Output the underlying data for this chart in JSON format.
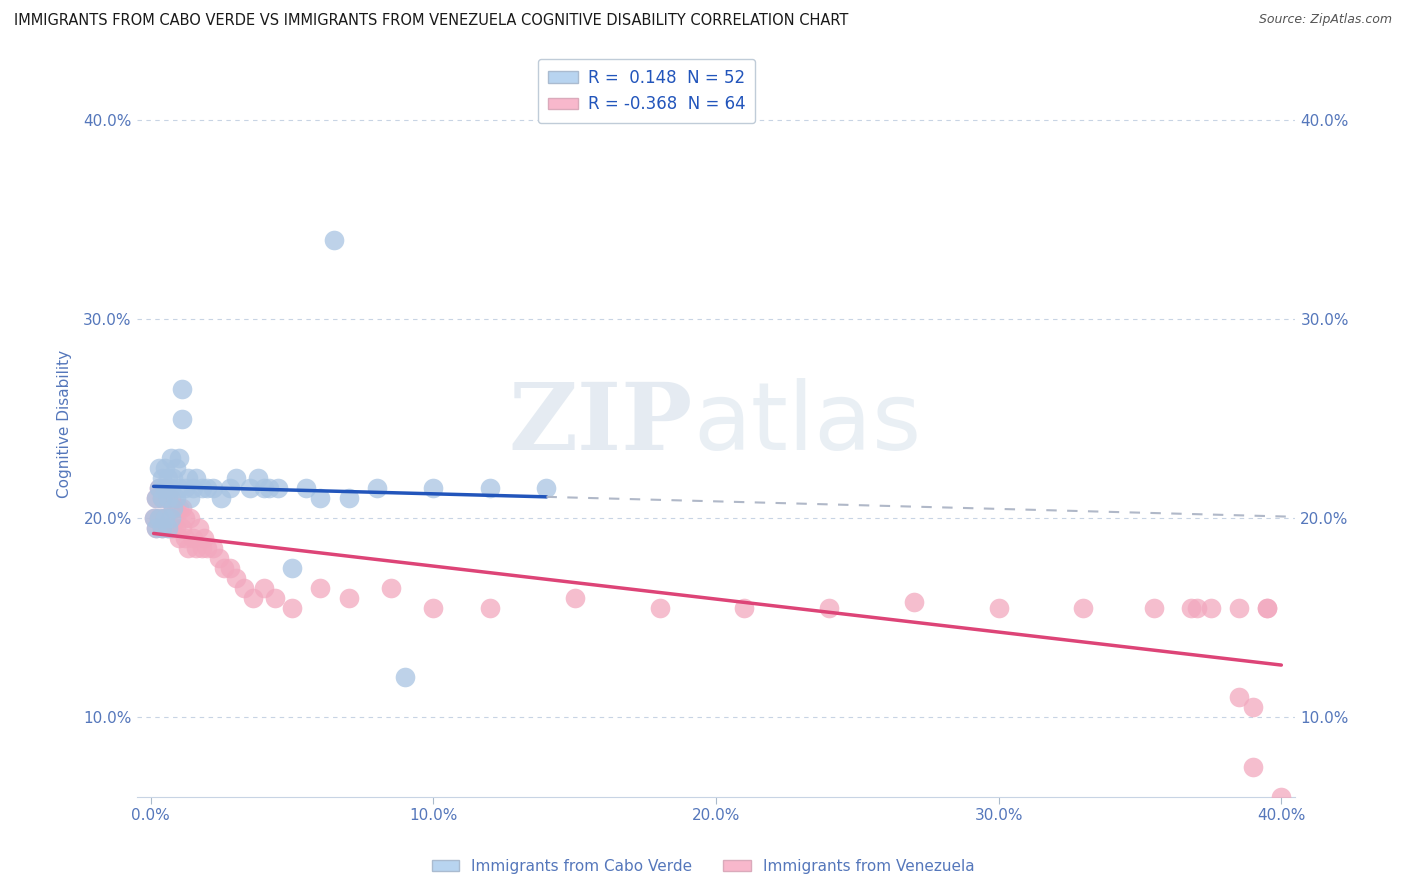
{
  "title": "IMMIGRANTS FROM CABO VERDE VS IMMIGRANTS FROM VENEZUELA COGNITIVE DISABILITY CORRELATION CHART",
  "source": "Source: ZipAtlas.com",
  "xlabel_left": "Immigrants from Cabo Verde",
  "xlabel_right": "Immigrants from Venezuela",
  "ylabel": "Cognitive Disability",
  "xlim": [
    -0.005,
    0.405
  ],
  "ylim": [
    0.06,
    0.435
  ],
  "xticks": [
    0.0,
    0.1,
    0.2,
    0.3,
    0.4
  ],
  "yticks": [
    0.1,
    0.2,
    0.3,
    0.4
  ],
  "r_cabo": 0.148,
  "n_cabo": 52,
  "r_venez": -0.368,
  "n_venez": 64,
  "watermark_zip": "ZIP",
  "watermark_atlas": "atlas",
  "cabo_color": "#a8c4e2",
  "venez_color": "#f2a8be",
  "cabo_line_color": "#2255bb",
  "venez_line_color": "#dd4477",
  "dash_color": "#b0b8c8",
  "cabo_legend_color": "#b8d4f0",
  "venez_legend_color": "#f8b8cc",
  "background_color": "#ffffff",
  "grid_color": "#c8d4e4",
  "tick_color": "#5577bb",
  "cabo_x": [
    0.001,
    0.002,
    0.002,
    0.003,
    0.003,
    0.003,
    0.004,
    0.004,
    0.004,
    0.005,
    0.005,
    0.005,
    0.006,
    0.006,
    0.006,
    0.007,
    0.007,
    0.007,
    0.008,
    0.008,
    0.009,
    0.009,
    0.01,
    0.01,
    0.011,
    0.011,
    0.012,
    0.013,
    0.014,
    0.015,
    0.016,
    0.018,
    0.02,
    0.022,
    0.025,
    0.028,
    0.03,
    0.035,
    0.038,
    0.04,
    0.042,
    0.045,
    0.05,
    0.055,
    0.06,
    0.065,
    0.07,
    0.08,
    0.09,
    0.1,
    0.12,
    0.14
  ],
  "cabo_y": [
    0.2,
    0.195,
    0.21,
    0.2,
    0.215,
    0.225,
    0.195,
    0.21,
    0.22,
    0.2,
    0.215,
    0.225,
    0.195,
    0.21,
    0.22,
    0.2,
    0.215,
    0.23,
    0.205,
    0.22,
    0.21,
    0.225,
    0.215,
    0.23,
    0.25,
    0.265,
    0.215,
    0.22,
    0.21,
    0.215,
    0.22,
    0.215,
    0.215,
    0.215,
    0.21,
    0.215,
    0.22,
    0.215,
    0.22,
    0.215,
    0.215,
    0.215,
    0.175,
    0.215,
    0.21,
    0.34,
    0.21,
    0.215,
    0.12,
    0.215,
    0.215,
    0.215
  ],
  "venez_x": [
    0.001,
    0.002,
    0.002,
    0.003,
    0.003,
    0.004,
    0.004,
    0.005,
    0.005,
    0.006,
    0.006,
    0.007,
    0.007,
    0.008,
    0.008,
    0.009,
    0.009,
    0.01,
    0.01,
    0.011,
    0.011,
    0.012,
    0.012,
    0.013,
    0.014,
    0.015,
    0.016,
    0.017,
    0.018,
    0.019,
    0.02,
    0.022,
    0.024,
    0.026,
    0.028,
    0.03,
    0.033,
    0.036,
    0.04,
    0.044,
    0.05,
    0.06,
    0.07,
    0.085,
    0.1,
    0.12,
    0.15,
    0.18,
    0.21,
    0.24,
    0.27,
    0.3,
    0.33,
    0.355,
    0.37,
    0.385,
    0.39,
    0.395,
    0.4,
    0.395,
    0.39,
    0.385,
    0.375,
    0.368
  ],
  "venez_y": [
    0.2,
    0.195,
    0.21,
    0.2,
    0.215,
    0.195,
    0.21,
    0.2,
    0.215,
    0.195,
    0.21,
    0.195,
    0.21,
    0.195,
    0.205,
    0.195,
    0.205,
    0.19,
    0.205,
    0.195,
    0.205,
    0.19,
    0.2,
    0.185,
    0.2,
    0.19,
    0.185,
    0.195,
    0.185,
    0.19,
    0.185,
    0.185,
    0.18,
    0.175,
    0.175,
    0.17,
    0.165,
    0.16,
    0.165,
    0.16,
    0.155,
    0.165,
    0.16,
    0.165,
    0.155,
    0.155,
    0.16,
    0.155,
    0.155,
    0.155,
    0.158,
    0.155,
    0.155,
    0.155,
    0.155,
    0.11,
    0.075,
    0.155,
    0.06,
    0.155,
    0.105,
    0.155,
    0.155,
    0.155
  ]
}
